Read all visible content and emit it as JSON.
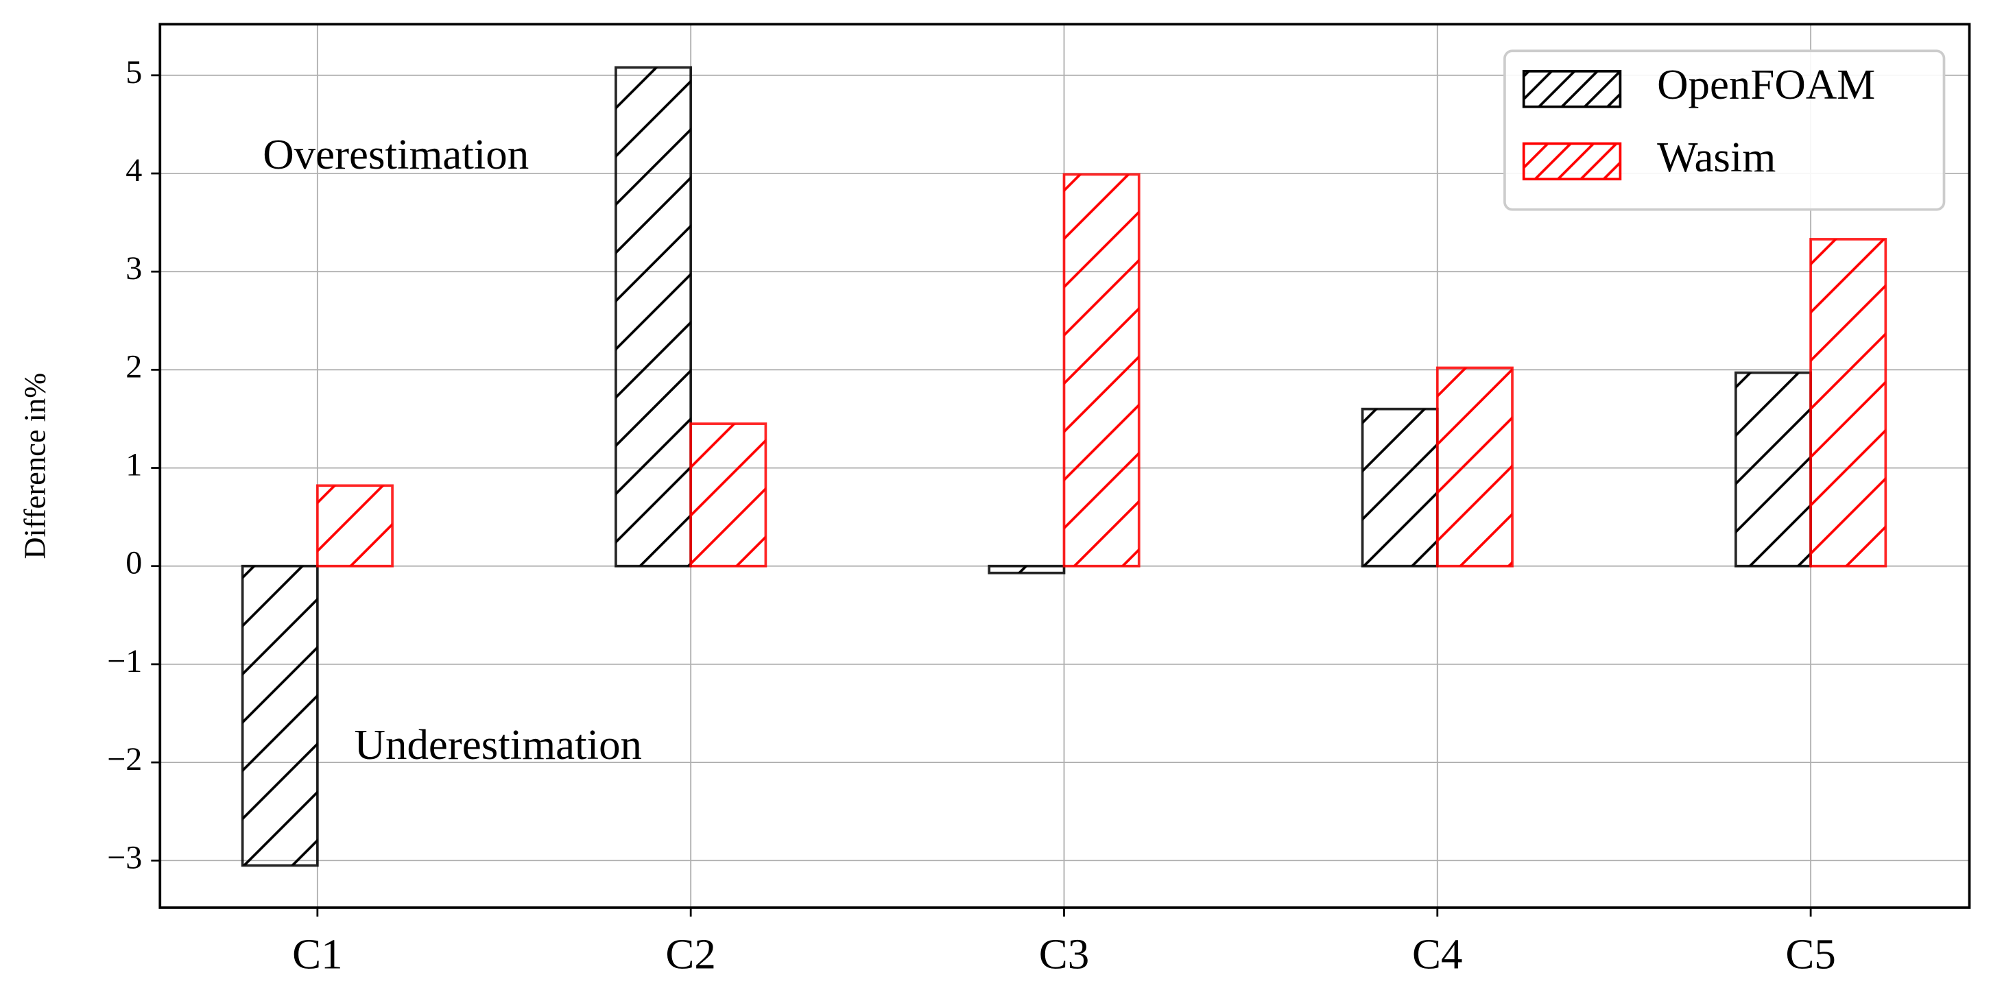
{
  "chart_data": {
    "type": "bar",
    "y_label": "Difference in%",
    "categories": [
      "C1",
      "C2",
      "C3",
      "C4",
      "C5"
    ],
    "series": [
      {
        "name": "OpenFOAM",
        "color": "#000000",
        "values": [
          -3.05,
          5.08,
          -0.07,
          1.6,
          1.97
        ]
      },
      {
        "name": "Wasim",
        "color": "#ff0000",
        "values": [
          0.82,
          1.45,
          3.99,
          2.02,
          3.33
        ]
      }
    ],
    "annotations": [
      "Overestimation",
      "Underestimation"
    ],
    "ylim": [
      -3.48,
      5.52
    ],
    "yticks": [
      {
        "value": -3,
        "label": "−3"
      },
      {
        "value": -2,
        "label": "−2"
      },
      {
        "value": -1,
        "label": "−1"
      },
      0,
      1,
      2,
      3,
      4,
      5
    ],
    "grid": true,
    "legend": "upper right"
  }
}
